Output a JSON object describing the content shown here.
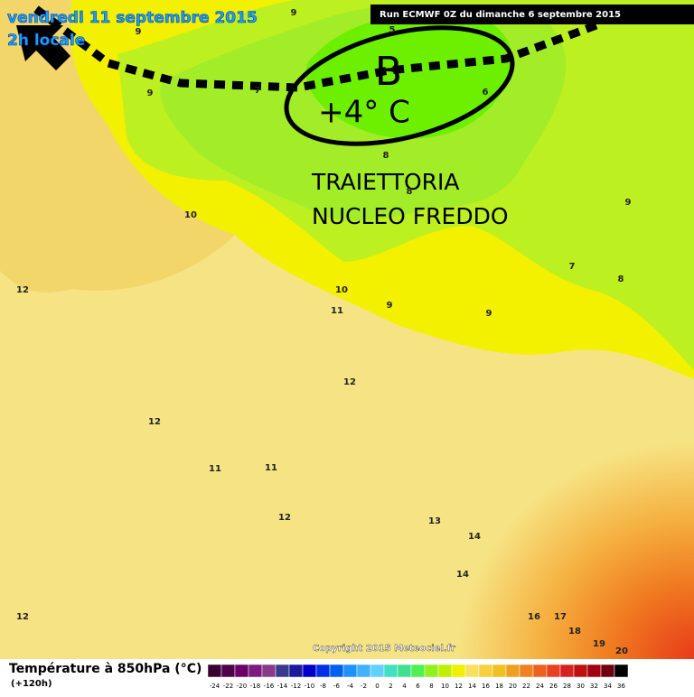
{
  "header": {
    "date": "vendredi 11 septembre 2015",
    "time": "2h locale",
    "run": "Run ECMWF 0Z du dimanche 6 septembre 2015"
  },
  "annotations": {
    "low": "B",
    "temperature": "+4° C",
    "line1": "TRAIETTORIA",
    "line2": "NUCLEO FREDDO"
  },
  "contour_labels": [
    9,
    5,
    9,
    9,
    7,
    6,
    8,
    8,
    10,
    9,
    12,
    7,
    10,
    11,
    9,
    9,
    8,
    12,
    12,
    11,
    11,
    12,
    13,
    14,
    14,
    12,
    16,
    17,
    18,
    19,
    20
  ],
  "footer": {
    "copyright": "Copyright 2015 Meteociel.fr",
    "title": "Température à 850hPa (°C)",
    "lead": "(+120h)"
  },
  "colorbar": {
    "labels": [
      -24,
      -22,
      -20,
      -18,
      -16,
      -14,
      -12,
      -10,
      -8,
      -6,
      -4,
      -2,
      0,
      2,
      4,
      6,
      8,
      10,
      12,
      14,
      16,
      18,
      20,
      22,
      24,
      26,
      28,
      30,
      32,
      34,
      36
    ]
  }
}
